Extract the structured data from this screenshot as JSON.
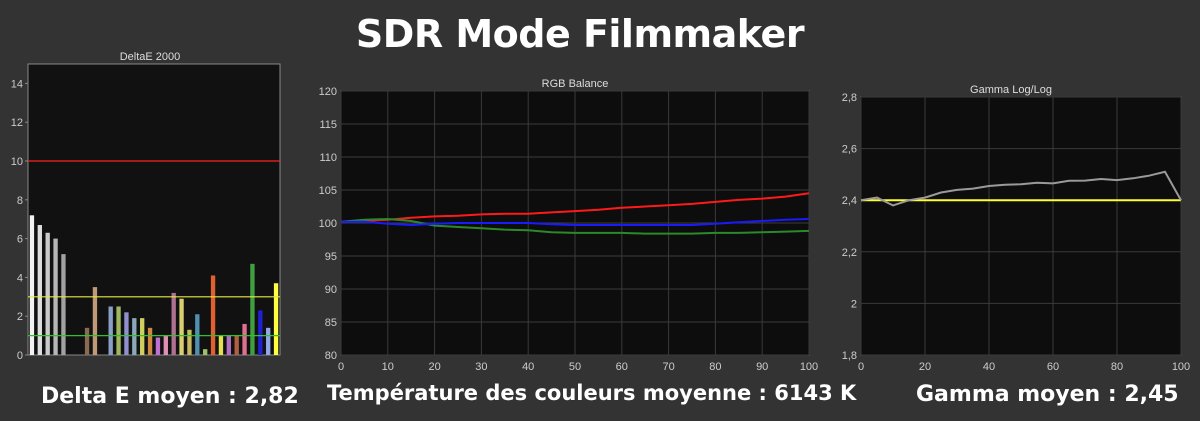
{
  "title": "SDR Mode Filmmaker",
  "captions": {
    "deltae": "Delta E moyen : 2,82",
    "rgb": "Température des couleurs moyenne : 6143 K",
    "gamma": "Gamma moyen : 2,45"
  },
  "chart_data": [
    {
      "type": "bar",
      "title": "DeltaE 2000",
      "ylim": [
        0,
        15
      ],
      "yticks": [
        "0",
        "2",
        "4",
        "6",
        "8",
        "10",
        "12",
        "14"
      ],
      "grid": false,
      "reference_lines": [
        {
          "value": 10,
          "color": "#ff2020"
        },
        {
          "value": 3,
          "color": "#e8e840"
        },
        {
          "value": 1,
          "color": "#30c030"
        }
      ],
      "values": [
        7.2,
        6.7,
        6.3,
        6.0,
        5.2,
        0,
        0,
        1.4,
        3.5,
        0,
        2.5,
        2.5,
        2.2,
        1.9,
        1.9,
        1.4,
        0.9,
        1.0,
        3.2,
        2.9,
        1.3,
        2.1,
        0.3,
        4.1,
        1.0,
        1.0,
        1.0,
        1.6,
        4.7,
        2.3,
        1.4,
        3.7
      ],
      "bar_colors": [
        "#f2f2f2",
        "#dedede",
        "#cacaca",
        "#b6b6b6",
        "#a2a2a2",
        "#666666",
        "#555555",
        "#8a6a50",
        "#c09a78",
        "#505050",
        "#8aa0c8",
        "#9fb860",
        "#9090d0",
        "#8aa8b8",
        "#d0d060",
        "#d08840",
        "#c070d0",
        "#e090b0",
        "#b07090",
        "#d8d070",
        "#c8b860",
        "#5090b0",
        "#a0c068",
        "#e06030",
        "#e0e050",
        "#b070c0",
        "#b06040",
        "#e07090",
        "#40a040",
        "#2020d0",
        "#90a8e8",
        "#ffff40"
      ]
    },
    {
      "type": "line",
      "title": "RGB Balance",
      "xlim": [
        0,
        100
      ],
      "ylim": [
        80,
        120
      ],
      "xticks": [
        "0",
        "10",
        "20",
        "30",
        "40",
        "50",
        "60",
        "70",
        "80",
        "90",
        "100"
      ],
      "yticks": [
        "80",
        "85",
        "90",
        "95",
        "100",
        "105",
        "110",
        "115",
        "120"
      ],
      "grid": true,
      "x": [
        0,
        5,
        10,
        15,
        20,
        25,
        30,
        35,
        40,
        45,
        50,
        55,
        60,
        65,
        70,
        75,
        80,
        85,
        90,
        95,
        100
      ],
      "series": [
        {
          "color": "#ff1a1a",
          "values": [
            100.2,
            100.3,
            100.5,
            100.8,
            101.0,
            101.1,
            101.3,
            101.4,
            101.4,
            101.6,
            101.8,
            102.0,
            102.3,
            102.5,
            102.7,
            102.9,
            103.2,
            103.5,
            103.7,
            104.0,
            104.5
          ]
        },
        {
          "color": "#2a8a2a",
          "values": [
            100.2,
            100.5,
            100.6,
            100.3,
            99.6,
            99.4,
            99.2,
            99.0,
            98.9,
            98.6,
            98.5,
            98.5,
            98.5,
            98.4,
            98.4,
            98.4,
            98.5,
            98.5,
            98.6,
            98.7,
            98.8
          ]
        },
        {
          "color": "#1a1aff",
          "values": [
            100.2,
            100.2,
            99.9,
            99.7,
            99.9,
            100.0,
            100.0,
            100.0,
            100.0,
            99.8,
            99.7,
            99.7,
            99.7,
            99.7,
            99.7,
            99.7,
            99.9,
            100.1,
            100.3,
            100.5,
            100.6
          ]
        }
      ]
    },
    {
      "type": "line",
      "title": "Gamma Log/Log",
      "xlim": [
        0,
        100
      ],
      "ylim": [
        1.8,
        2.8
      ],
      "xticks": [
        "0",
        "20",
        "40",
        "60",
        "80",
        "100"
      ],
      "yticks": [
        "1,8",
        "2",
        "2,2",
        "2,4",
        "2,6",
        "2,8"
      ],
      "grid": true,
      "reference_lines": [
        {
          "value": 2.4,
          "color": "#ffff30"
        }
      ],
      "x": [
        0,
        5,
        10,
        15,
        20,
        25,
        30,
        35,
        40,
        45,
        50,
        55,
        60,
        65,
        70,
        75,
        80,
        85,
        90,
        95,
        100
      ],
      "series": [
        {
          "color": "#9a9a9a",
          "values": [
            2.4,
            2.41,
            2.38,
            2.4,
            2.41,
            2.43,
            2.44,
            2.445,
            2.455,
            2.46,
            2.462,
            2.468,
            2.465,
            2.475,
            2.476,
            2.482,
            2.478,
            2.485,
            2.495,
            2.51,
            2.4
          ]
        }
      ]
    }
  ]
}
